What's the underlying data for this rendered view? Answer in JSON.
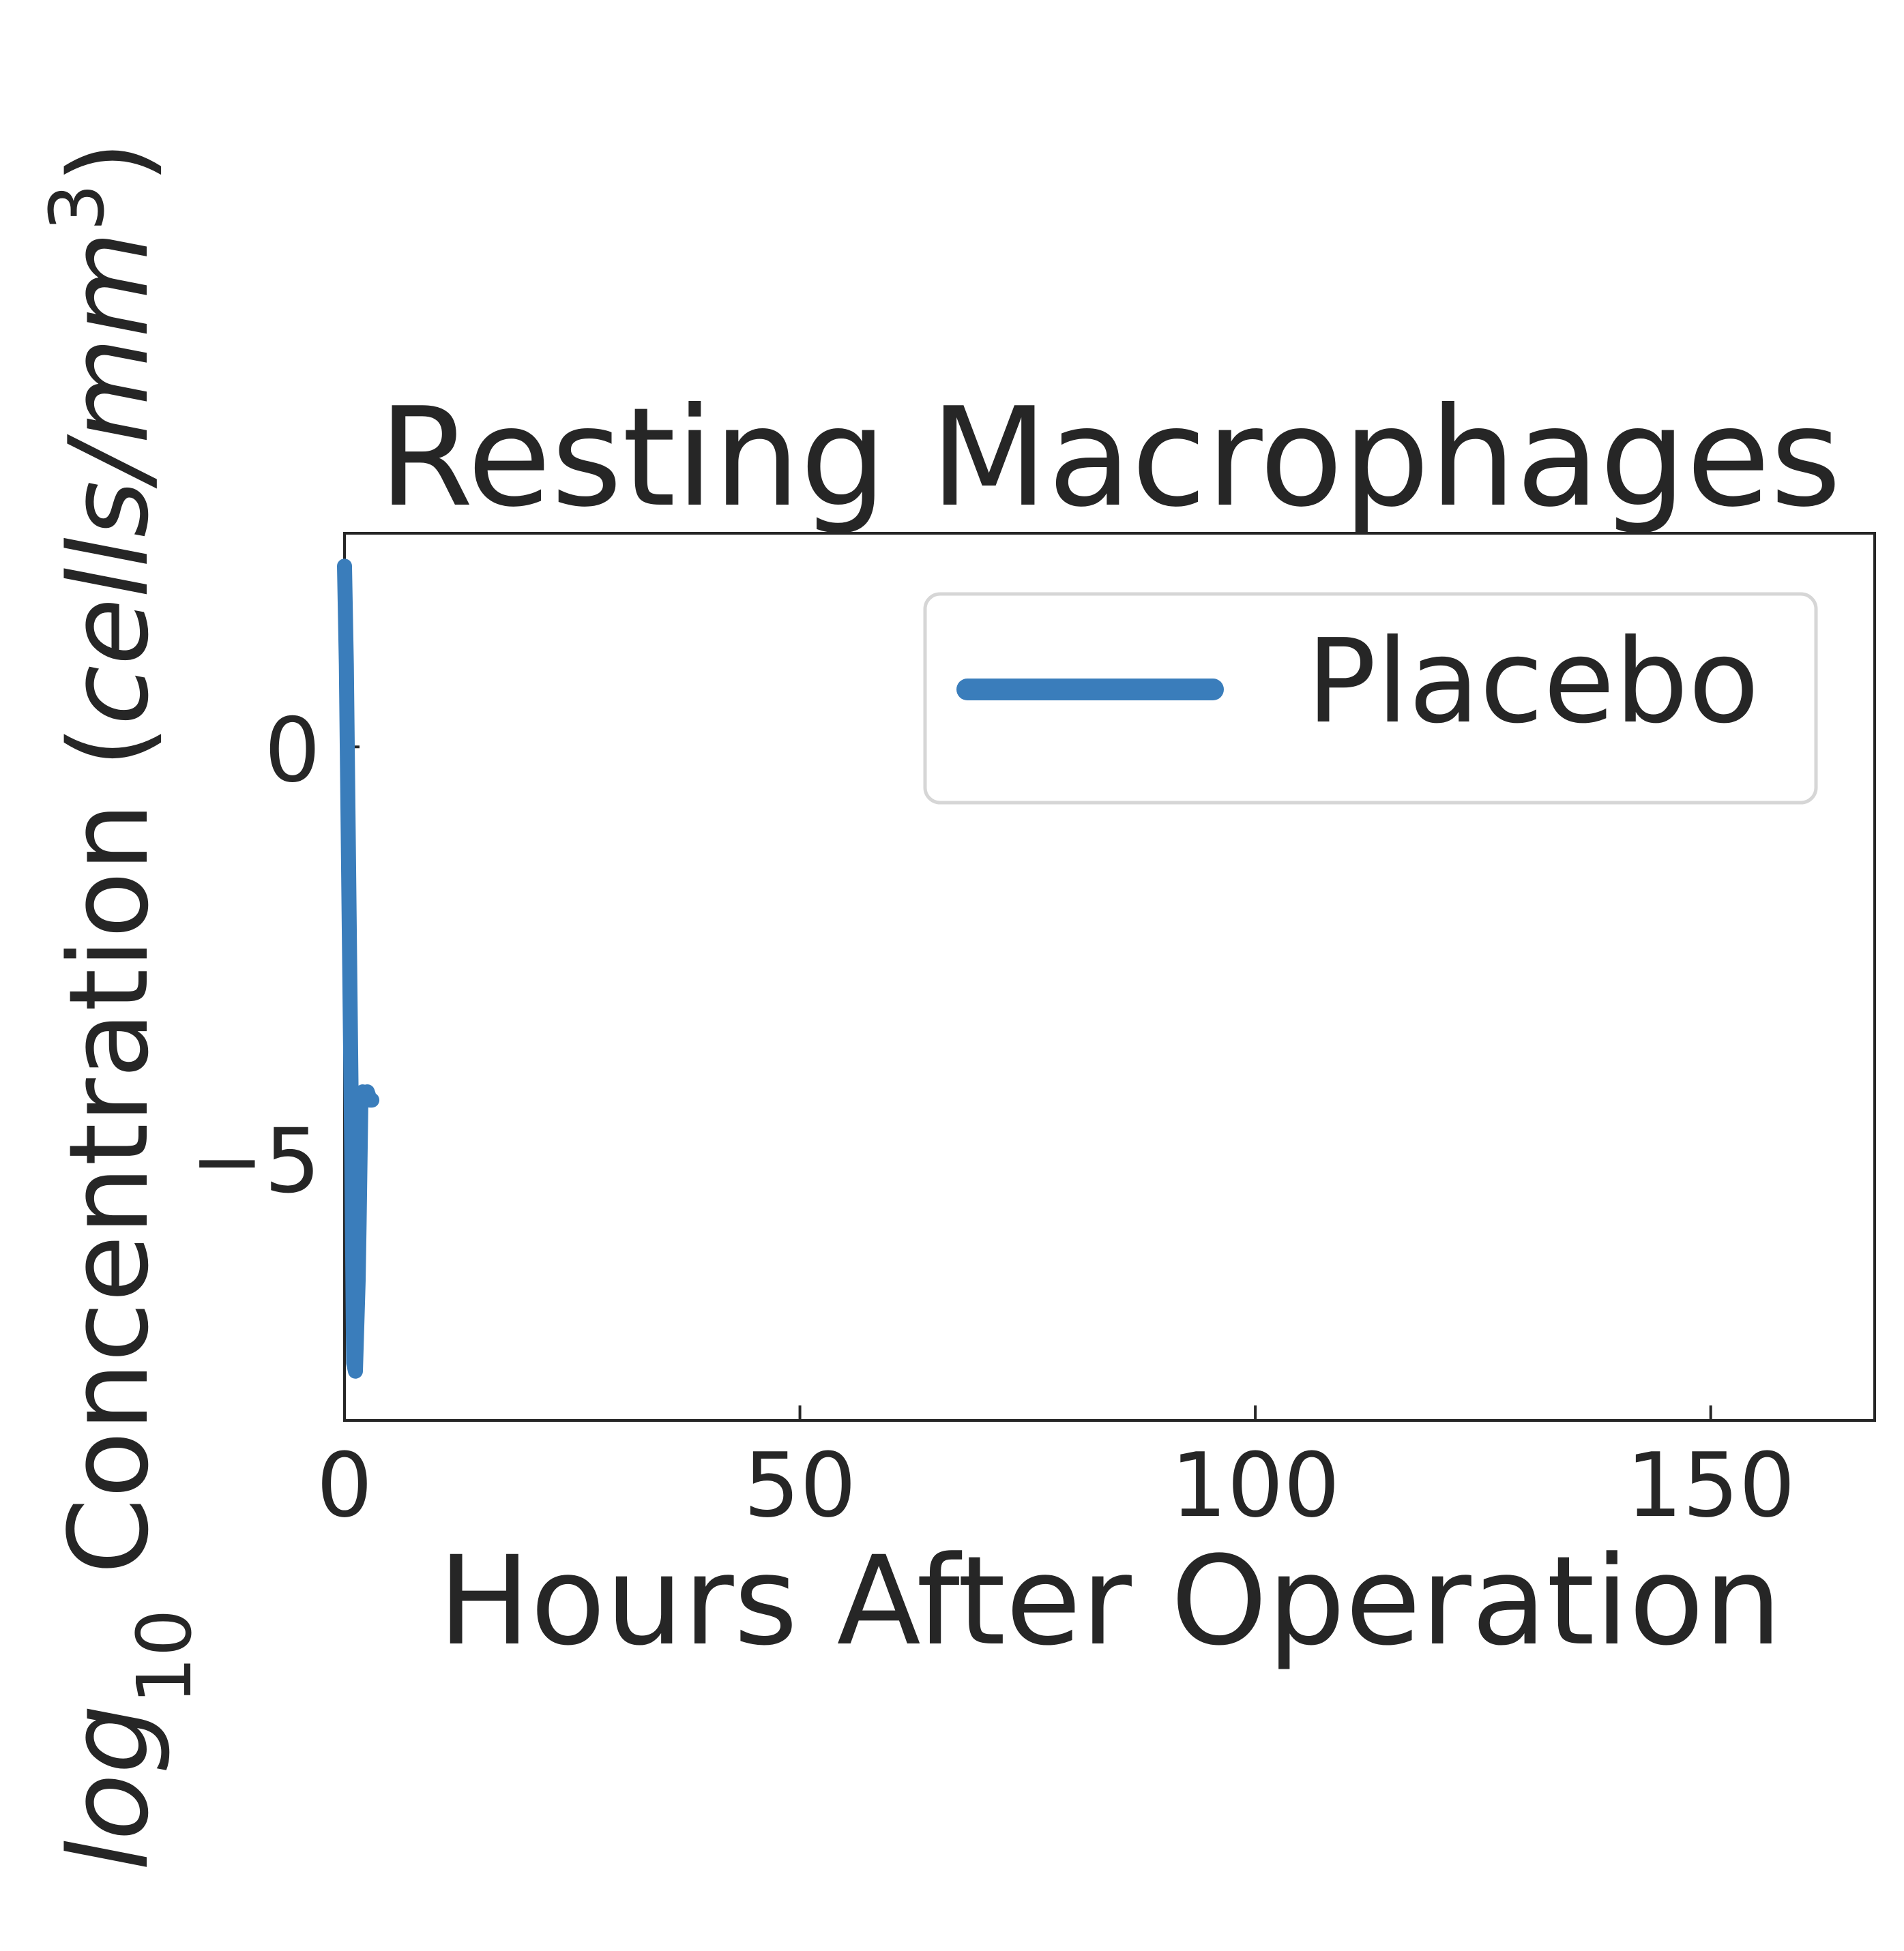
{
  "chart_data": {
    "type": "line",
    "title": "Resting Macrophages",
    "xlabel": "Hours After Operation",
    "ylabel": {
      "prefix": "log",
      "subscript": "10",
      "main": " Concentration (",
      "unit": "cells/mm",
      "superscript": "3",
      "suffix": ")"
    },
    "xlim": [
      0,
      168
    ],
    "ylim": [
      -8.2,
      2.6
    ],
    "xticks": [
      0,
      50,
      100,
      150
    ],
    "xtick_labels": [
      "0",
      "50",
      "100",
      "150"
    ],
    "yticks": [
      0,
      -5
    ],
    "ytick_labels": [
      "0",
      "−5"
    ],
    "grid": false,
    "legend_position": "top-right",
    "series": [
      {
        "name": "Placebo",
        "color": "#3a7dbb",
        "x": [
          0.0,
          0.2,
          0.5,
          0.8,
          1.0,
          1.2,
          1.5,
          1.6,
          1.8,
          2.0,
          2.2,
          2.5,
          2.8,
          3.0
        ],
        "y": [
          2.2,
          1.0,
          -2.0,
          -5.0,
          -7.5,
          -7.6,
          -6.5,
          -5.8,
          -4.3,
          -4.2,
          -4.3,
          -4.2,
          -4.3,
          -4.3
        ]
      }
    ]
  }
}
